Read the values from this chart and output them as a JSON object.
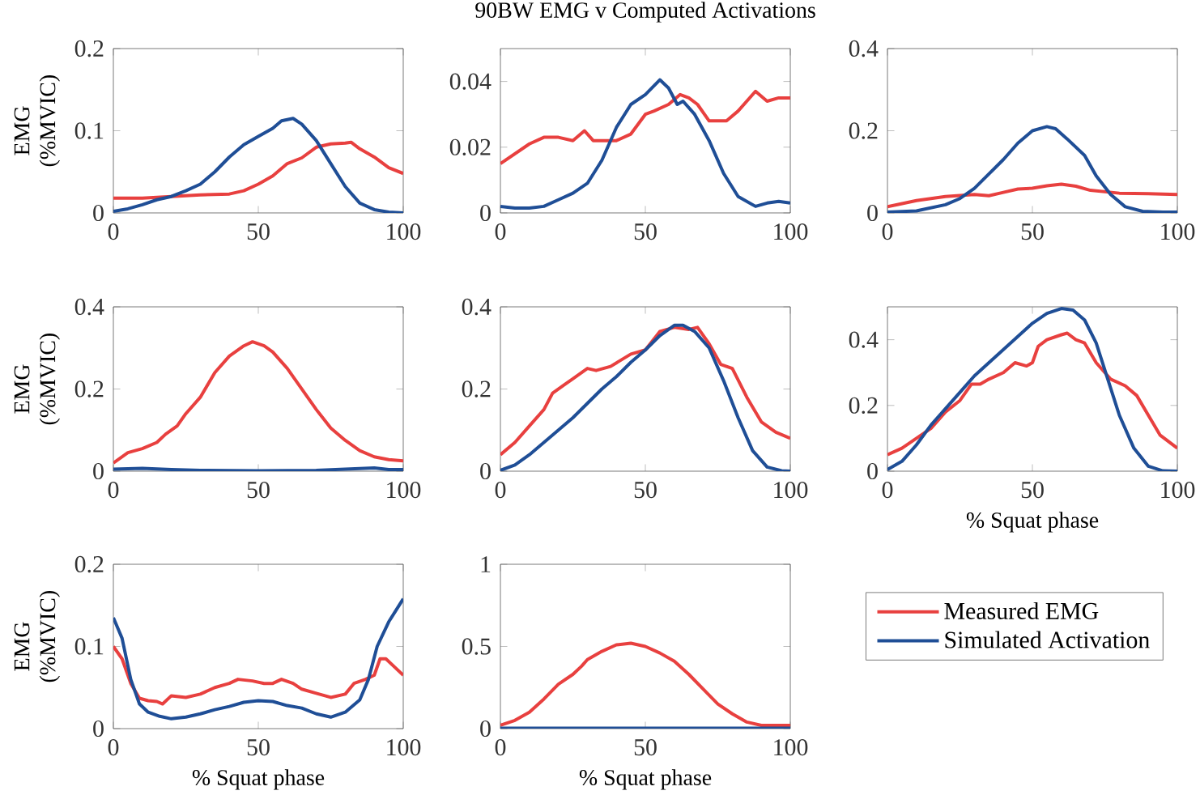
{
  "chart_data": [
    {
      "type": "line",
      "ylabel": "EMG (%MVIC)",
      "xlim": [
        0,
        100
      ],
      "ylim": [
        0,
        0.2
      ],
      "xticks": [
        0,
        50,
        100
      ],
      "yticks": [
        0,
        0.1,
        0.2
      ],
      "series": [
        {
          "color": "#e8403f",
          "x": [
            0,
            10,
            20,
            30,
            40,
            45,
            50,
            55,
            60,
            65,
            70,
            75,
            80,
            82,
            85,
            90,
            95,
            100
          ],
          "values": [
            0.018,
            0.018,
            0.02,
            0.022,
            0.023,
            0.027,
            0.035,
            0.045,
            0.06,
            0.067,
            0.08,
            0.084,
            0.085,
            0.086,
            0.078,
            0.068,
            0.055,
            0.048
          ]
        },
        {
          "color": "#1f4e96",
          "x": [
            0,
            5,
            10,
            15,
            20,
            25,
            30,
            35,
            40,
            45,
            50,
            55,
            58,
            62,
            65,
            70,
            75,
            80,
            85,
            90,
            95,
            100
          ],
          "values": [
            0.002,
            0.005,
            0.01,
            0.016,
            0.02,
            0.027,
            0.035,
            0.05,
            0.068,
            0.083,
            0.093,
            0.103,
            0.112,
            0.115,
            0.108,
            0.088,
            0.06,
            0.032,
            0.012,
            0.004,
            0.001,
            0
          ]
        }
      ]
    },
    {
      "type": "line",
      "title": "90BW EMG v Computed Activations",
      "xlim": [
        0,
        100
      ],
      "ylim": [
        0,
        0.05
      ],
      "xticks": [
        0,
        50,
        100
      ],
      "yticks": [
        0,
        0.02,
        0.04
      ],
      "series": [
        {
          "color": "#e8403f",
          "x": [
            0,
            5,
            10,
            15,
            20,
            25,
            29,
            32,
            35,
            40,
            45,
            50,
            53,
            58,
            62,
            65,
            68,
            72,
            78,
            82,
            88,
            92,
            96,
            100
          ],
          "values": [
            0.015,
            0.018,
            0.021,
            0.023,
            0.023,
            0.022,
            0.025,
            0.022,
            0.022,
            0.022,
            0.024,
            0.03,
            0.031,
            0.033,
            0.036,
            0.035,
            0.033,
            0.028,
            0.028,
            0.031,
            0.037,
            0.034,
            0.035,
            0.035
          ]
        },
        {
          "color": "#1f4e96",
          "x": [
            0,
            5,
            10,
            15,
            20,
            25,
            30,
            35,
            40,
            45,
            50,
            55,
            58,
            61,
            63,
            67,
            72,
            77,
            82,
            88,
            92,
            96,
            100
          ],
          "values": [
            0.002,
            0.0015,
            0.0015,
            0.002,
            0.004,
            0.006,
            0.009,
            0.016,
            0.026,
            0.033,
            0.036,
            0.0405,
            0.038,
            0.033,
            0.034,
            0.03,
            0.022,
            0.012,
            0.005,
            0.002,
            0.003,
            0.0035,
            0.003
          ]
        }
      ]
    },
    {
      "type": "line",
      "xlim": [
        0,
        100
      ],
      "ylim": [
        0,
        0.4
      ],
      "xticks": [
        0,
        50,
        100
      ],
      "yticks": [
        0,
        0.2,
        0.4
      ],
      "series": [
        {
          "color": "#e8403f",
          "x": [
            0,
            10,
            20,
            30,
            35,
            40,
            45,
            50,
            55,
            60,
            65,
            70,
            80,
            90,
            100
          ],
          "values": [
            0.015,
            0.03,
            0.04,
            0.045,
            0.042,
            0.05,
            0.058,
            0.06,
            0.066,
            0.07,
            0.065,
            0.055,
            0.048,
            0.047,
            0.045
          ]
        },
        {
          "color": "#1f4e96",
          "x": [
            0,
            10,
            20,
            25,
            30,
            35,
            40,
            45,
            50,
            55,
            58,
            62,
            68,
            72,
            77,
            82,
            88,
            95,
            100
          ],
          "values": [
            0.002,
            0.005,
            0.02,
            0.035,
            0.06,
            0.095,
            0.13,
            0.17,
            0.2,
            0.21,
            0.205,
            0.18,
            0.14,
            0.09,
            0.045,
            0.015,
            0.004,
            0.002,
            0.002
          ]
        }
      ]
    },
    {
      "type": "line",
      "ylabel": "EMG (%MVIC)",
      "xlim": [
        0,
        100
      ],
      "ylim": [
        0,
        0.4
      ],
      "xticks": [
        0,
        50,
        100
      ],
      "yticks": [
        0,
        0.2,
        0.4
      ],
      "series": [
        {
          "color": "#e8403f",
          "x": [
            0,
            5,
            10,
            15,
            18,
            22,
            25,
            30,
            35,
            40,
            45,
            48,
            52,
            55,
            60,
            65,
            70,
            75,
            80,
            85,
            90,
            95,
            100
          ],
          "values": [
            0.02,
            0.045,
            0.055,
            0.07,
            0.09,
            0.11,
            0.14,
            0.18,
            0.24,
            0.28,
            0.305,
            0.315,
            0.305,
            0.29,
            0.25,
            0.2,
            0.15,
            0.105,
            0.075,
            0.05,
            0.035,
            0.028,
            0.025
          ]
        },
        {
          "color": "#1f4e96",
          "x": [
            0,
            10,
            20,
            30,
            50,
            70,
            80,
            90,
            95,
            100
          ],
          "values": [
            0.005,
            0.007,
            0.004,
            0.002,
            0.001,
            0.002,
            0.005,
            0.008,
            0.004,
            0.004
          ]
        }
      ]
    },
    {
      "type": "line",
      "xlim": [
        0,
        100
      ],
      "ylim": [
        0,
        0.4
      ],
      "xticks": [
        0,
        50,
        100
      ],
      "yticks": [
        0,
        0.2,
        0.4
      ],
      "series": [
        {
          "color": "#e8403f",
          "x": [
            0,
            5,
            10,
            15,
            18,
            22,
            25,
            30,
            33,
            38,
            45,
            50,
            55,
            60,
            65,
            68,
            72,
            76,
            80,
            85,
            90,
            95,
            100
          ],
          "values": [
            0.04,
            0.07,
            0.11,
            0.15,
            0.19,
            0.21,
            0.225,
            0.25,
            0.245,
            0.255,
            0.285,
            0.295,
            0.34,
            0.35,
            0.345,
            0.35,
            0.31,
            0.26,
            0.25,
            0.18,
            0.12,
            0.095,
            0.08
          ]
        },
        {
          "color": "#1f4e96",
          "x": [
            0,
            5,
            10,
            15,
            20,
            25,
            30,
            35,
            40,
            45,
            50,
            55,
            60,
            63,
            67,
            72,
            77,
            82,
            87,
            92,
            97,
            100
          ],
          "values": [
            0.002,
            0.015,
            0.04,
            0.07,
            0.1,
            0.13,
            0.165,
            0.2,
            0.23,
            0.265,
            0.295,
            0.33,
            0.355,
            0.355,
            0.34,
            0.3,
            0.22,
            0.13,
            0.05,
            0.01,
            0.001,
            0
          ]
        }
      ]
    },
    {
      "type": "line",
      "xlabel": "% Squat phase",
      "xlim": [
        0,
        100
      ],
      "ylim": [
        0,
        0.5
      ],
      "xticks": [
        0,
        50,
        100
      ],
      "yticks": [
        0,
        0.2,
        0.4
      ],
      "series": [
        {
          "color": "#e8403f",
          "x": [
            0,
            5,
            10,
            15,
            20,
            25,
            29,
            32,
            35,
            40,
            44,
            48,
            50,
            52,
            55,
            60,
            62,
            65,
            68,
            72,
            77,
            82,
            86,
            90,
            94,
            100
          ],
          "values": [
            0.05,
            0.07,
            0.1,
            0.13,
            0.18,
            0.215,
            0.265,
            0.265,
            0.28,
            0.3,
            0.33,
            0.32,
            0.33,
            0.38,
            0.4,
            0.415,
            0.42,
            0.4,
            0.39,
            0.33,
            0.28,
            0.26,
            0.23,
            0.17,
            0.11,
            0.07
          ]
        },
        {
          "color": "#1f4e96",
          "x": [
            0,
            5,
            10,
            15,
            20,
            25,
            30,
            35,
            40,
            45,
            50,
            55,
            60,
            64,
            68,
            72,
            76,
            80,
            85,
            90,
            95,
            100
          ],
          "values": [
            0.005,
            0.03,
            0.08,
            0.14,
            0.19,
            0.24,
            0.29,
            0.33,
            0.37,
            0.41,
            0.45,
            0.48,
            0.495,
            0.49,
            0.46,
            0.39,
            0.28,
            0.17,
            0.07,
            0.015,
            0.001,
            0
          ]
        }
      ]
    },
    {
      "type": "line",
      "ylabel": "EMG (%MVIC)",
      "xlabel": "% Squat phase",
      "xlim": [
        0,
        100
      ],
      "ylim": [
        0,
        0.2
      ],
      "xticks": [
        0,
        50,
        100
      ],
      "yticks": [
        0,
        0.1,
        0.2
      ],
      "series": [
        {
          "color": "#e8403f",
          "x": [
            0,
            3,
            6,
            9,
            12,
            15,
            17,
            20,
            25,
            30,
            35,
            40,
            43,
            48,
            52,
            55,
            58,
            62,
            65,
            70,
            75,
            80,
            83,
            87,
            90,
            92,
            94,
            97,
            100
          ],
          "values": [
            0.1,
            0.085,
            0.055,
            0.037,
            0.034,
            0.033,
            0.03,
            0.04,
            0.038,
            0.042,
            0.05,
            0.055,
            0.06,
            0.058,
            0.055,
            0.055,
            0.06,
            0.055,
            0.048,
            0.043,
            0.038,
            0.042,
            0.055,
            0.06,
            0.065,
            0.085,
            0.085,
            0.075,
            0.065
          ]
        },
        {
          "color": "#1f4e96",
          "x": [
            0,
            3,
            6,
            9,
            12,
            16,
            20,
            25,
            30,
            35,
            40,
            45,
            50,
            55,
            60,
            65,
            70,
            75,
            80,
            85,
            88,
            91,
            95,
            100
          ],
          "values": [
            0.135,
            0.11,
            0.06,
            0.03,
            0.02,
            0.015,
            0.012,
            0.014,
            0.018,
            0.023,
            0.027,
            0.032,
            0.034,
            0.033,
            0.028,
            0.025,
            0.018,
            0.014,
            0.02,
            0.035,
            0.06,
            0.1,
            0.13,
            0.158
          ]
        }
      ]
    },
    {
      "type": "line",
      "xlabel": "% Squat phase",
      "xlim": [
        0,
        100
      ],
      "ylim": [
        0,
        1
      ],
      "xticks": [
        0,
        50,
        100
      ],
      "yticks": [
        0,
        0.5,
        1
      ],
      "legend": "right",
      "series": [
        {
          "name": "Measured EMG",
          "color": "#e8403f",
          "x": [
            0,
            5,
            10,
            15,
            20,
            25,
            28,
            30,
            35,
            40,
            45,
            50,
            55,
            60,
            65,
            70,
            75,
            80,
            85,
            90,
            100
          ],
          "values": [
            0.02,
            0.05,
            0.1,
            0.18,
            0.27,
            0.33,
            0.38,
            0.42,
            0.47,
            0.51,
            0.52,
            0.5,
            0.46,
            0.41,
            0.33,
            0.24,
            0.15,
            0.09,
            0.04,
            0.02,
            0.02
          ]
        },
        {
          "name": "Simulated Activation",
          "color": "#1f4e96",
          "x": [
            0,
            25,
            50,
            75,
            100
          ],
          "values": [
            0.002,
            0.002,
            0.002,
            0.002,
            0.002
          ]
        }
      ]
    }
  ]
}
